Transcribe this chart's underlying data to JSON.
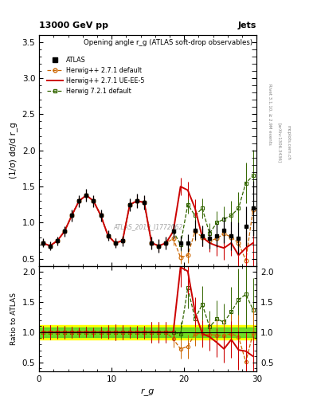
{
  "title_top": "13000 GeV pp",
  "title_right": "Jets",
  "plot_title": "Opening angle r_g (ATLAS soft-drop observables)",
  "ylabel_main": "(1/σ) dσ/d r_g",
  "ylabel_ratio": "Ratio to ATLAS",
  "xlabel": "r_g",
  "watermark": "ATLAS_2019_I1772062",
  "right_label1": "Rivet 3.1.10, ≥ 2.9M events",
  "right_label2": "[arXiv:1306.3436]",
  "right_label3": "mcplots.cern.ch",
  "x_data": [
    0.5,
    1.5,
    2.5,
    3.5,
    4.5,
    5.5,
    6.5,
    7.5,
    8.5,
    9.5,
    10.5,
    11.5,
    12.5,
    13.5,
    14.5,
    15.5,
    16.5,
    17.5,
    18.5,
    19.5,
    20.5,
    21.5,
    22.5,
    23.5,
    24.5,
    25.5,
    26.5,
    27.5,
    28.5,
    29.5
  ],
  "atlas_y": [
    0.72,
    0.68,
    0.75,
    0.88,
    1.1,
    1.3,
    1.38,
    1.3,
    1.1,
    0.82,
    0.72,
    0.75,
    1.25,
    1.3,
    1.28,
    0.72,
    0.68,
    0.72,
    0.88,
    0.72,
    0.72,
    0.9,
    0.82,
    0.78,
    0.82,
    0.9,
    0.82,
    0.78,
    0.95,
    1.2
  ],
  "atlas_yerr": [
    0.06,
    0.06,
    0.06,
    0.07,
    0.08,
    0.08,
    0.09,
    0.08,
    0.08,
    0.07,
    0.07,
    0.07,
    0.09,
    0.1,
    0.1,
    0.09,
    0.09,
    0.09,
    0.1,
    0.1,
    0.12,
    0.14,
    0.14,
    0.14,
    0.16,
    0.18,
    0.2,
    0.22,
    0.28,
    0.38
  ],
  "hw271d_y": [
    0.72,
    0.68,
    0.75,
    0.88,
    1.1,
    1.3,
    1.38,
    1.3,
    1.1,
    0.82,
    0.72,
    0.75,
    1.25,
    1.3,
    1.28,
    0.72,
    0.68,
    0.72,
    0.78,
    0.52,
    0.55,
    0.88,
    0.8,
    0.75,
    0.78,
    0.85,
    0.8,
    0.72,
    0.48,
    1.18
  ],
  "hw271d_yerr": [
    0.05,
    0.05,
    0.05,
    0.06,
    0.07,
    0.07,
    0.08,
    0.07,
    0.07,
    0.06,
    0.06,
    0.06,
    0.08,
    0.09,
    0.09,
    0.08,
    0.08,
    0.08,
    0.09,
    0.09,
    0.11,
    0.13,
    0.13,
    0.13,
    0.15,
    0.17,
    0.18,
    0.2,
    0.26,
    0.35
  ],
  "hw271u_y": [
    0.72,
    0.68,
    0.75,
    0.88,
    1.1,
    1.3,
    1.38,
    1.3,
    1.1,
    0.82,
    0.72,
    0.75,
    1.25,
    1.3,
    1.28,
    0.72,
    0.68,
    0.72,
    0.88,
    1.5,
    1.45,
    1.2,
    0.8,
    0.72,
    0.68,
    0.65,
    0.72,
    0.55,
    0.65,
    0.72
  ],
  "hw271u_yerr": [
    0.05,
    0.05,
    0.05,
    0.06,
    0.07,
    0.07,
    0.08,
    0.07,
    0.07,
    0.06,
    0.06,
    0.06,
    0.08,
    0.09,
    0.09,
    0.08,
    0.08,
    0.08,
    0.09,
    0.12,
    0.12,
    0.12,
    0.12,
    0.12,
    0.14,
    0.16,
    0.18,
    0.2,
    0.25,
    0.32
  ],
  "hw721d_y": [
    0.72,
    0.68,
    0.75,
    0.88,
    1.1,
    1.3,
    1.38,
    1.3,
    1.1,
    0.82,
    0.72,
    0.75,
    1.25,
    1.3,
    1.28,
    0.72,
    0.68,
    0.72,
    0.88,
    0.7,
    1.25,
    1.1,
    1.2,
    0.85,
    1.0,
    1.05,
    1.1,
    1.2,
    1.55,
    1.65
  ],
  "hw721d_yerr": [
    0.05,
    0.05,
    0.05,
    0.06,
    0.07,
    0.07,
    0.08,
    0.07,
    0.07,
    0.06,
    0.06,
    0.06,
    0.08,
    0.09,
    0.09,
    0.08,
    0.08,
    0.08,
    0.09,
    0.1,
    0.12,
    0.13,
    0.14,
    0.14,
    0.16,
    0.18,
    0.2,
    0.22,
    0.28,
    0.36
  ],
  "xlim": [
    0,
    30
  ],
  "ylim_main": [
    0.4,
    3.6
  ],
  "ylim_ratio": [
    0.35,
    2.1
  ],
  "yticks_main": [
    0.5,
    1.0,
    1.5,
    2.0,
    2.5,
    3.0,
    3.5
  ],
  "yticks_ratio": [
    0.5,
    1.0,
    1.5,
    2.0
  ],
  "xticks": [
    0,
    10,
    20,
    30
  ],
  "color_atlas": "#000000",
  "color_hw271d": "#cc6600",
  "color_hw271u": "#cc0000",
  "color_hw721d": "#336600",
  "color_band_yellow": "#ffff00",
  "color_band_green": "#33cc33"
}
